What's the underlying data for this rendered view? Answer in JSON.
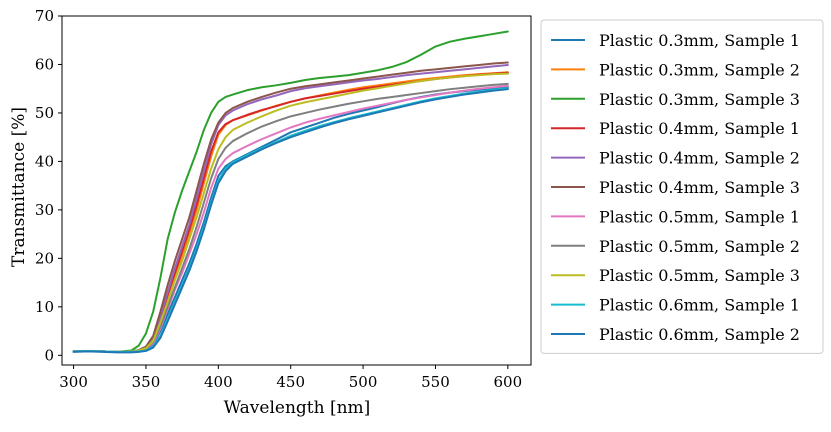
{
  "chart_data": {
    "type": "line",
    "title": "",
    "xlabel": "Wavelength [nm]",
    "ylabel": "Transmittance [%]",
    "xlim": [
      292,
      616
    ],
    "ylim": [
      -2,
      70
    ],
    "xticks": [
      300,
      350,
      400,
      450,
      500,
      550,
      600
    ],
    "yticks": [
      0,
      10,
      20,
      30,
      40,
      50,
      60,
      70
    ],
    "grid": false,
    "legend_position": "outside-right",
    "x": [
      300,
      310,
      320,
      330,
      340,
      345,
      350,
      355,
      360,
      365,
      370,
      375,
      380,
      385,
      390,
      395,
      400,
      405,
      410,
      420,
      430,
      440,
      450,
      460,
      470,
      480,
      490,
      500,
      510,
      520,
      530,
      540,
      550,
      560,
      570,
      580,
      590,
      600
    ],
    "series": [
      {
        "name": "Plastic 0.3mm, Sample 1",
        "color": "#1f77b4",
        "values": [
          0.8,
          0.9,
          0.8,
          0.7,
          0.8,
          1.0,
          1.3,
          2.2,
          5.0,
          8.5,
          12.0,
          15.5,
          19.0,
          23.0,
          27.5,
          32.5,
          37.0,
          39.0,
          40.0,
          41.5,
          43.0,
          44.5,
          46.0,
          47.0,
          48.0,
          49.0,
          49.8,
          50.5,
          51.2,
          52.0,
          52.7,
          53.3,
          53.8,
          54.2,
          54.5,
          54.8,
          55.1,
          55.3
        ]
      },
      {
        "name": "Plastic 0.3mm, Sample 2",
        "color": "#ff7f0e",
        "values": [
          0.8,
          0.9,
          0.8,
          0.7,
          0.8,
          1.0,
          1.5,
          3.0,
          7.0,
          11.5,
          16.0,
          20.5,
          25.0,
          30.0,
          35.5,
          41.0,
          45.5,
          47.5,
          48.5,
          49.5,
          50.5,
          51.5,
          52.3,
          53.0,
          53.6,
          54.2,
          54.8,
          55.3,
          55.7,
          56.1,
          56.5,
          56.9,
          57.2,
          57.5,
          57.8,
          58.0,
          58.2,
          58.4
        ]
      },
      {
        "name": "Plastic 0.3mm, Sample 3",
        "color": "#2ca02c",
        "values": [
          0.8,
          0.9,
          0.8,
          0.7,
          1.0,
          2.0,
          4.5,
          9.0,
          16.0,
          24.0,
          29.5,
          34.0,
          38.0,
          42.0,
          46.5,
          50.0,
          52.3,
          53.3,
          53.8,
          54.7,
          55.3,
          55.7,
          56.2,
          56.8,
          57.2,
          57.5,
          57.8,
          58.3,
          58.8,
          59.5,
          60.5,
          62.0,
          63.7,
          64.7,
          65.3,
          65.8,
          66.3,
          66.8
        ]
      },
      {
        "name": "Plastic 0.4mm, Sample 1",
        "color": "#d62728",
        "values": [
          0.8,
          0.9,
          0.8,
          0.7,
          0.8,
          1.0,
          1.5,
          3.2,
          7.5,
          12.5,
          17.0,
          21.5,
          26.0,
          31.0,
          36.5,
          42.0,
          46.0,
          47.7,
          48.5,
          49.6,
          50.6,
          51.4,
          52.3,
          53.0,
          53.5,
          54.0,
          54.5,
          55.0,
          55.4,
          55.8,
          56.2,
          56.6,
          57.0,
          57.3,
          57.6,
          57.9,
          58.1,
          58.3
        ]
      },
      {
        "name": "Plastic 0.4mm, Sample 2",
        "color": "#9467bd",
        "values": [
          0.8,
          0.9,
          0.8,
          0.7,
          0.8,
          1.0,
          1.6,
          3.5,
          8.0,
          13.0,
          18.0,
          22.5,
          27.0,
          32.5,
          38.0,
          43.5,
          47.5,
          49.5,
          50.5,
          51.8,
          52.8,
          53.6,
          54.5,
          55.1,
          55.5,
          55.9,
          56.3,
          56.7,
          57.0,
          57.4,
          57.8,
          58.1,
          58.4,
          58.7,
          59.0,
          59.3,
          59.6,
          59.9
        ]
      },
      {
        "name": "Plastic 0.4mm, Sample 3",
        "color": "#8c564b",
        "values": [
          0.8,
          0.9,
          0.8,
          0.7,
          0.8,
          1.1,
          1.8,
          4.0,
          9.0,
          14.5,
          19.5,
          24.0,
          28.5,
          34.0,
          39.5,
          44.5,
          48.0,
          50.0,
          51.0,
          52.3,
          53.3,
          54.2,
          55.0,
          55.5,
          55.9,
          56.3,
          56.7,
          57.1,
          57.5,
          57.9,
          58.3,
          58.7,
          59.0,
          59.3,
          59.6,
          59.9,
          60.2,
          60.4
        ]
      },
      {
        "name": "Plastic 0.5mm, Sample 1",
        "color": "#e377c2",
        "values": [
          0.8,
          0.9,
          0.8,
          0.7,
          0.8,
          1.0,
          1.3,
          2.5,
          5.5,
          9.5,
          13.5,
          17.0,
          21.0,
          25.0,
          29.5,
          34.5,
          38.5,
          40.5,
          41.7,
          43.2,
          44.6,
          45.8,
          47.0,
          48.0,
          48.8,
          49.5,
          50.2,
          50.9,
          51.5,
          52.1,
          52.7,
          53.2,
          53.7,
          54.2,
          54.6,
          55.0,
          55.3,
          55.6
        ]
      },
      {
        "name": "Plastic 0.5mm, Sample 2",
        "color": "#7f7f7f",
        "values": [
          0.8,
          0.9,
          0.8,
          0.7,
          0.8,
          1.0,
          1.4,
          2.8,
          6.0,
          10.0,
          14.0,
          18.0,
          22.0,
          26.5,
          31.5,
          36.5,
          40.5,
          42.8,
          44.2,
          45.8,
          47.2,
          48.3,
          49.3,
          50.0,
          50.7,
          51.3,
          51.9,
          52.4,
          52.9,
          53.3,
          53.7,
          54.1,
          54.5,
          54.9,
          55.2,
          55.5,
          55.8,
          56.0
        ]
      },
      {
        "name": "Plastic 0.5mm, Sample 3",
        "color": "#bcbd22",
        "values": [
          0.8,
          0.9,
          0.8,
          0.7,
          0.8,
          1.0,
          1.5,
          3.0,
          6.8,
          11.0,
          15.5,
          19.5,
          24.0,
          28.5,
          33.5,
          38.5,
          42.5,
          45.0,
          46.5,
          48.0,
          49.3,
          50.5,
          51.5,
          52.2,
          52.8,
          53.4,
          54.0,
          54.6,
          55.1,
          55.6,
          56.1,
          56.6,
          57.0,
          57.3,
          57.6,
          57.8,
          58.0,
          58.1
        ]
      },
      {
        "name": "Plastic 0.6mm, Sample 1",
        "color": "#17becf",
        "values": [
          0.8,
          0.9,
          0.8,
          0.7,
          0.7,
          0.8,
          1.0,
          1.8,
          4.0,
          7.5,
          11.0,
          14.5,
          18.0,
          22.0,
          26.5,
          31.5,
          36.0,
          38.5,
          39.8,
          41.3,
          42.7,
          44.0,
          45.3,
          46.3,
          47.3,
          48.1,
          48.9,
          49.6,
          50.3,
          51.0,
          51.7,
          52.4,
          53.0,
          53.5,
          54.0,
          54.4,
          54.8,
          55.1
        ]
      },
      {
        "name": "Plastic 0.6mm, Sample 2",
        "color": "#1f77b4",
        "values": [
          0.7,
          0.8,
          0.7,
          0.6,
          0.6,
          0.7,
          0.9,
          1.6,
          3.6,
          7.0,
          10.5,
          14.0,
          17.5,
          21.5,
          26.0,
          31.0,
          35.5,
          38.0,
          39.5,
          41.0,
          42.5,
          43.8,
          45.0,
          46.0,
          47.0,
          47.9,
          48.7,
          49.4,
          50.1,
          50.8,
          51.5,
          52.2,
          52.8,
          53.3,
          53.8,
          54.2,
          54.6,
          54.9
        ]
      }
    ]
  }
}
